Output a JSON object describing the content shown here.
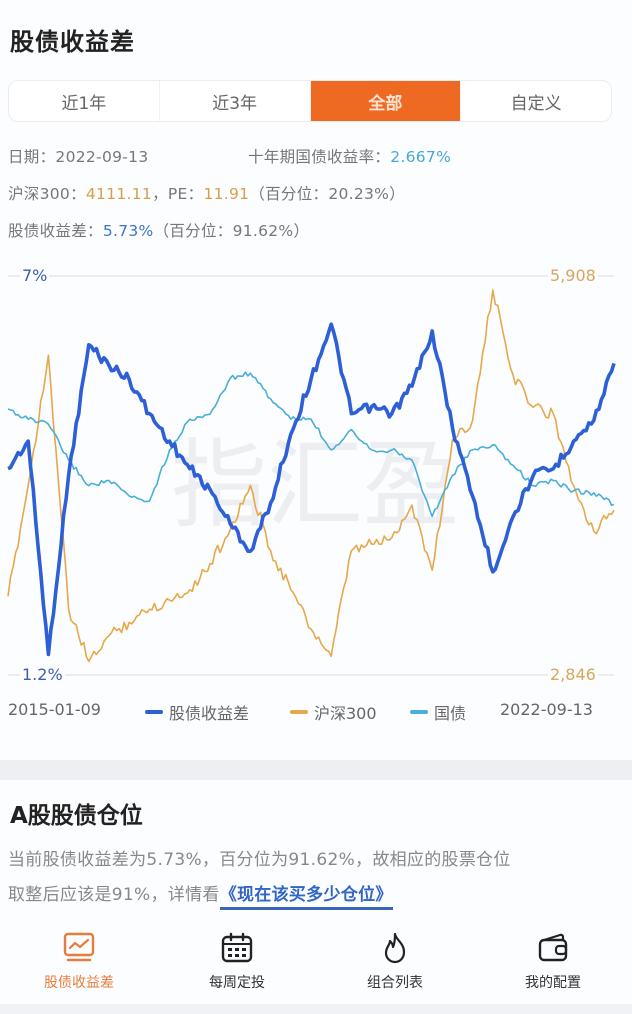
{
  "header": {
    "title": "股债收益差"
  },
  "tabs": [
    {
      "label": "近1年",
      "active": false
    },
    {
      "label": "近3年",
      "active": false
    },
    {
      "label": "全部",
      "active": true
    },
    {
      "label": "自定义",
      "active": false
    }
  ],
  "info": {
    "date_label": "日期：",
    "date_value": "2022-09-13",
    "bond_label": "十年期国债收益率：",
    "bond_value": "2.667%",
    "index_label": "沪深300：",
    "index_value": "4111.11",
    "pe_label": "，PE：",
    "pe_value": "11.91",
    "pe_pct": "（百分位：20.23%）",
    "spread_label": "股债收益差：",
    "spread_value": "5.73%",
    "spread_pct": "（百分位：91.62%）"
  },
  "colors": {
    "accent": "#ee6a22",
    "spread": "#2d5fd6",
    "index": "#e6a84a",
    "bond": "#4aaed6"
  },
  "chart_data": {
    "type": "line",
    "title": "股债收益差",
    "x_start_label": "2015-01-09",
    "x_end_label": "2022-09-13",
    "left_axis": {
      "top_label": "7%",
      "bottom_label": "1.2%",
      "range": [
        1.2,
        7.0
      ]
    },
    "right_axis": {
      "top_label": "5,908",
      "bottom_label": "2,846",
      "range": [
        2846,
        5908
      ]
    },
    "grid": "top and bottom reference lines only",
    "legend_position": "bottom",
    "watermark": "指汇盈",
    "x": [
      "2015-01",
      "2015-04",
      "2015-06",
      "2015-09",
      "2016-01",
      "2016-04",
      "2016-07",
      "2016-10",
      "2017-01",
      "2017-04",
      "2017-07",
      "2017-10",
      "2018-01",
      "2018-04",
      "2018-07",
      "2018-10",
      "2019-01",
      "2019-04",
      "2019-07",
      "2019-10",
      "2020-01",
      "2020-04",
      "2020-07",
      "2020-10",
      "2021-02",
      "2021-05",
      "2021-08",
      "2021-11",
      "2022-03",
      "2022-06",
      "2022-09"
    ],
    "series": [
      {
        "name": "股债收益差",
        "axis": "left",
        "unit": "%",
        "values": [
          4.2,
          4.6,
          1.5,
          4.1,
          6.0,
          5.7,
          5.5,
          5.0,
          4.6,
          4.2,
          3.9,
          3.4,
          3.0,
          3.7,
          4.7,
          5.5,
          6.3,
          5.0,
          5.1,
          5.0,
          5.4,
          6.2,
          4.8,
          3.8,
          2.7,
          3.5,
          4.1,
          4.2,
          4.6,
          4.9,
          5.73
        ]
      },
      {
        "name": "沪深300",
        "axis": "right",
        "unit": "点",
        "values": [
          3450,
          4300,
          5300,
          3350,
          2950,
          3150,
          3250,
          3350,
          3420,
          3500,
          3700,
          3960,
          4300,
          3800,
          3500,
          3200,
          2990,
          3800,
          3850,
          3900,
          4150,
          3650,
          4650,
          4800,
          5800,
          5150,
          4900,
          4850,
          4300,
          3950,
          4111
        ]
      },
      {
        "name": "国债",
        "axis": "right-scaled",
        "unit": "%",
        "values": [
          3.6,
          3.5,
          3.45,
          3.1,
          2.85,
          2.9,
          2.75,
          2.7,
          3.2,
          3.5,
          3.55,
          3.9,
          3.95,
          3.7,
          3.5,
          3.5,
          3.2,
          3.4,
          3.2,
          3.2,
          3.1,
          2.55,
          2.95,
          3.2,
          3.25,
          3.05,
          2.85,
          2.9,
          2.8,
          2.78,
          2.667
        ]
      }
    ]
  },
  "legend": {
    "start_date": "2015-01-09",
    "end_date": "2022-09-13",
    "items": [
      {
        "label": "股债收益差"
      },
      {
        "label": "沪深300"
      },
      {
        "label": "国债"
      }
    ]
  },
  "section2": {
    "title": "A股股债仓位",
    "line1": "当前股债收益差为5.73%，百分位为91.62%，故相应的股票仓位",
    "line2_prefix": "取整后应该是91%，详情看",
    "link_label": "《现在该买多少仓位》"
  },
  "bottom_nav": [
    {
      "label": "股债收益差",
      "icon": "chart-monitor-icon",
      "active": true
    },
    {
      "label": "每周定投",
      "icon": "calendar-icon",
      "active": false
    },
    {
      "label": "组合列表",
      "icon": "flame-icon",
      "active": false
    },
    {
      "label": "我的配置",
      "icon": "wallet-icon",
      "active": false
    }
  ]
}
